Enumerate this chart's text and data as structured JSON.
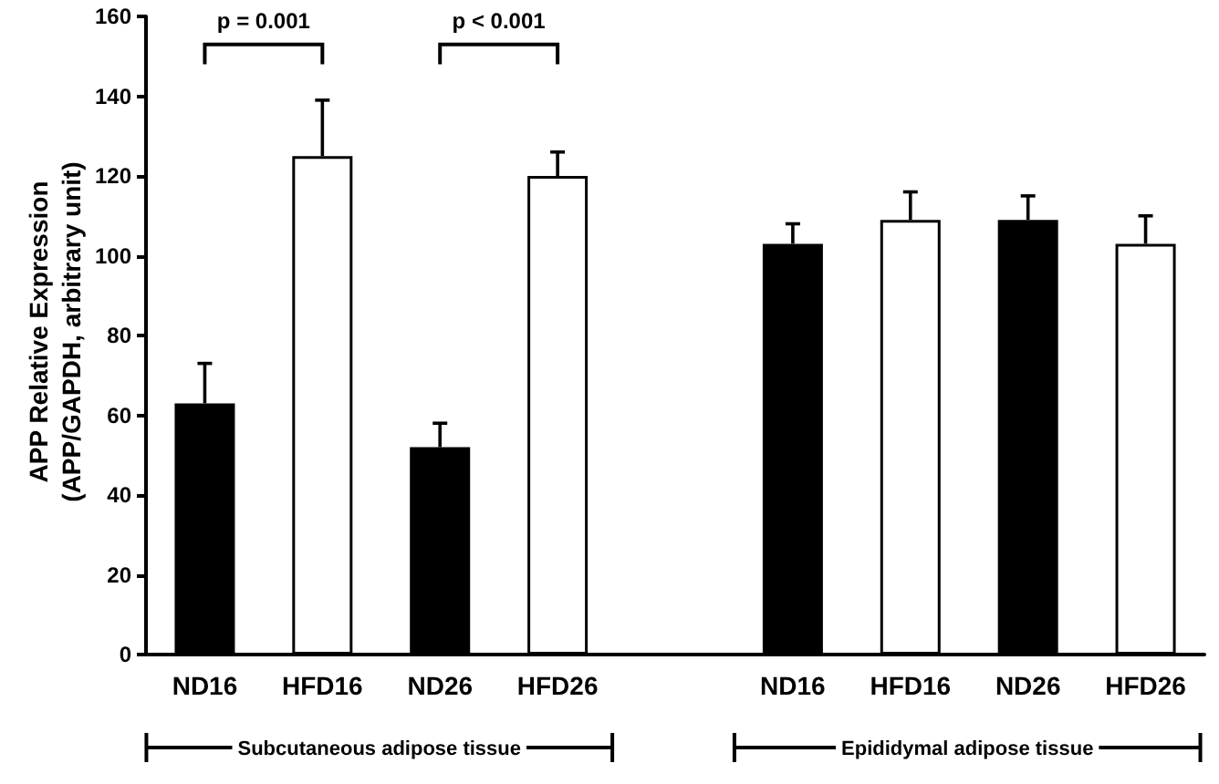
{
  "chart_data": {
    "type": "bar",
    "ylabel": "APP Relative Expression\n(APP/GAPDH, arbitrary unit)",
    "categories": [
      "ND16",
      "HFD16",
      "ND26",
      "HFD26",
      null,
      "ND16",
      "HFD16",
      "ND26",
      "HFD26"
    ],
    "values": [
      63,
      125,
      52,
      120,
      null,
      103,
      109,
      109,
      103
    ],
    "colors": [
      "#000000",
      "#ffffff",
      "#000000",
      "#ffffff",
      null,
      "#000000",
      "#ffffff",
      "#000000",
      "#ffffff"
    ],
    "errors": [
      [
        63,
        73
      ],
      [
        125,
        139
      ],
      [
        52,
        58
      ],
      [
        120,
        126
      ],
      null,
      [
        103,
        108
      ],
      [
        109,
        116
      ],
      [
        109,
        115
      ],
      [
        103,
        110
      ]
    ],
    "ylim": [
      0,
      160
    ],
    "yticks": [
      0,
      20,
      40,
      60,
      80,
      100,
      120,
      140,
      160
    ],
    "grid": false,
    "annotations": [
      "p = 0.001",
      "p < 0.001",
      "Subcutaneous adipose tissue",
      "Epididymal adipose tissue"
    ]
  }
}
